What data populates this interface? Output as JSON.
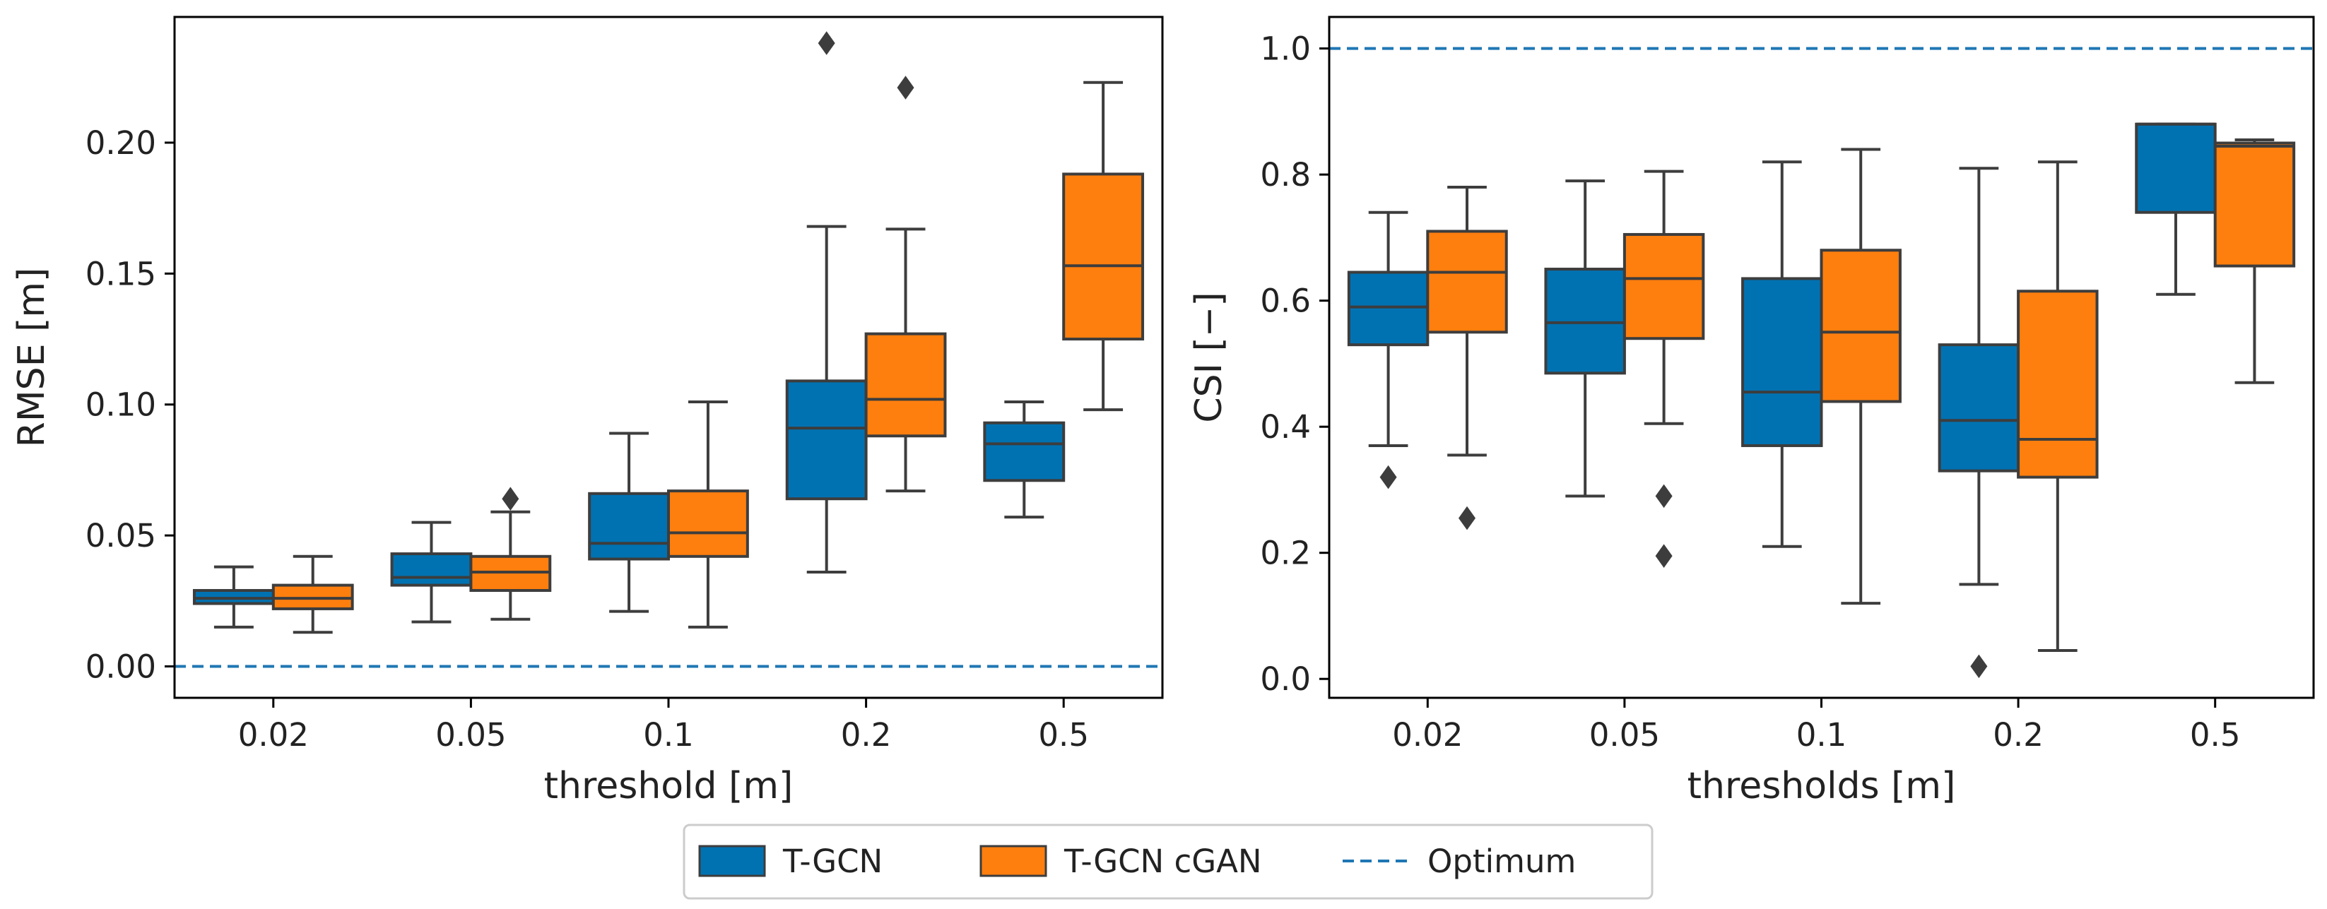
{
  "colors": {
    "t_gcn": "#0072b2",
    "t_gcn_cgan": "#ff7f0e",
    "optimum": "#1f77b4",
    "box_edge": "#3d3d3d",
    "axis": "#000000"
  },
  "legend": {
    "items": [
      {
        "label": "T-GCN",
        "kind": "patch",
        "color": "#0072b2"
      },
      {
        "label": "T-GCN cGAN",
        "kind": "patch",
        "color": "#ff7f0e"
      },
      {
        "label": "Optimum",
        "kind": "dashed-line",
        "color": "#1f77b4"
      }
    ]
  },
  "chart_data": [
    {
      "type": "box",
      "panel": "left",
      "xlabel": "threshold [m]",
      "ylabel": "RMSE [m]",
      "ylim": [
        -0.012,
        0.248
      ],
      "yticks": [
        0.0,
        0.05,
        0.1,
        0.15,
        0.2
      ],
      "ytick_labels": [
        "0.00",
        "0.05",
        "0.10",
        "0.15",
        "0.20"
      ],
      "categories": [
        "0.02",
        "0.05",
        "0.1",
        "0.2",
        "0.5"
      ],
      "optimum": 0.0,
      "series": [
        {
          "name": "T-GCN",
          "boxes": [
            {
              "whislo": 0.015,
              "q1": 0.024,
              "med": 0.026,
              "q3": 0.029,
              "whishi": 0.038,
              "fliers": []
            },
            {
              "whislo": 0.017,
              "q1": 0.031,
              "med": 0.034,
              "q3": 0.043,
              "whishi": 0.055,
              "fliers": []
            },
            {
              "whislo": 0.021,
              "q1": 0.041,
              "med": 0.047,
              "q3": 0.066,
              "whishi": 0.089,
              "fliers": []
            },
            {
              "whislo": 0.036,
              "q1": 0.064,
              "med": 0.091,
              "q3": 0.109,
              "whishi": 0.168,
              "fliers": [
                0.238
              ]
            },
            {
              "whislo": 0.057,
              "q1": 0.071,
              "med": 0.085,
              "q3": 0.093,
              "whishi": 0.101,
              "fliers": []
            }
          ]
        },
        {
          "name": "T-GCN cGAN",
          "boxes": [
            {
              "whislo": 0.013,
              "q1": 0.022,
              "med": 0.026,
              "q3": 0.031,
              "whishi": 0.042,
              "fliers": []
            },
            {
              "whislo": 0.018,
              "q1": 0.029,
              "med": 0.036,
              "q3": 0.042,
              "whishi": 0.059,
              "fliers": [
                0.064
              ]
            },
            {
              "whislo": 0.015,
              "q1": 0.042,
              "med": 0.051,
              "q3": 0.067,
              "whishi": 0.101,
              "fliers": []
            },
            {
              "whislo": 0.067,
              "q1": 0.088,
              "med": 0.102,
              "q3": 0.127,
              "whishi": 0.167,
              "fliers": [
                0.221
              ]
            },
            {
              "whislo": 0.098,
              "q1": 0.125,
              "med": 0.153,
              "q3": 0.188,
              "whishi": 0.223,
              "fliers": []
            }
          ]
        }
      ]
    },
    {
      "type": "box",
      "panel": "right",
      "xlabel": "thresholds [m]",
      "ylabel": "CSI [−]",
      "ylim": [
        -0.03,
        1.05
      ],
      "yticks": [
        0.0,
        0.2,
        0.4,
        0.6,
        0.8,
        1.0
      ],
      "ytick_labels": [
        "0.0",
        "0.2",
        "0.4",
        "0.6",
        "0.8",
        "1.0"
      ],
      "categories": [
        "0.02",
        "0.05",
        "0.1",
        "0.2",
        "0.5"
      ],
      "optimum": 1.0,
      "series": [
        {
          "name": "T-GCN",
          "boxes": [
            {
              "whislo": 0.37,
              "q1": 0.53,
              "med": 0.59,
              "q3": 0.645,
              "whishi": 0.74,
              "fliers": [
                0.32
              ]
            },
            {
              "whislo": 0.29,
              "q1": 0.485,
              "med": 0.565,
              "q3": 0.65,
              "whishi": 0.79,
              "fliers": []
            },
            {
              "whislo": 0.21,
              "q1": 0.37,
              "med": 0.455,
              "q3": 0.635,
              "whishi": 0.82,
              "fliers": []
            },
            {
              "whislo": 0.15,
              "q1": 0.33,
              "med": 0.41,
              "q3": 0.53,
              "whishi": 0.81,
              "fliers": [
                0.02
              ]
            },
            {
              "whislo": 0.61,
              "q1": 0.74,
              "med": 0.88,
              "q3": 0.88,
              "whishi": 0.88,
              "fliers": []
            }
          ]
        },
        {
          "name": "T-GCN cGAN",
          "boxes": [
            {
              "whislo": 0.355,
              "q1": 0.55,
              "med": 0.645,
              "q3": 0.71,
              "whishi": 0.78,
              "fliers": [
                0.255
              ]
            },
            {
              "whislo": 0.405,
              "q1": 0.54,
              "med": 0.635,
              "q3": 0.705,
              "whishi": 0.805,
              "fliers": [
                0.29,
                0.195
              ]
            },
            {
              "whislo": 0.12,
              "q1": 0.44,
              "med": 0.55,
              "q3": 0.68,
              "whishi": 0.84,
              "fliers": []
            },
            {
              "whislo": 0.045,
              "q1": 0.32,
              "med": 0.38,
              "q3": 0.615,
              "whishi": 0.82,
              "fliers": []
            },
            {
              "whislo": 0.47,
              "q1": 0.655,
              "med": 0.845,
              "q3": 0.85,
              "whishi": 0.855,
              "fliers": []
            }
          ]
        }
      ]
    }
  ]
}
